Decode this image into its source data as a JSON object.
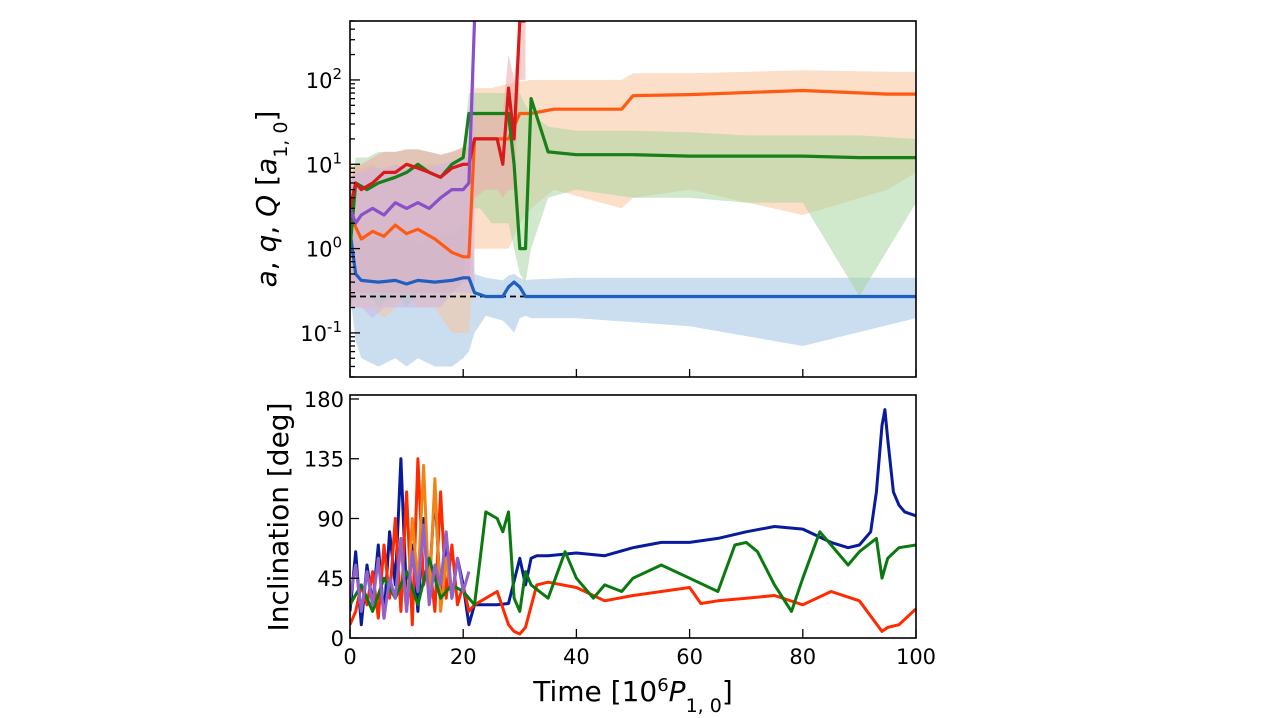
{
  "chart_data": [
    {
      "type": "line",
      "panel": "top",
      "yscale": "log",
      "ylabel": "a, q, Q [a_{1,0}]",
      "xlim": [
        0,
        100
      ],
      "ylim": [
        0.03,
        500
      ],
      "ytick_labels": [
        "10^{-1}",
        "10^{0}",
        "10^{1}",
        "10^{2}"
      ],
      "ytick_values": [
        0.1,
        1,
        10,
        100
      ],
      "reference_line": {
        "y": 0.27,
        "style": "dashed",
        "color": "#000000"
      },
      "series": [
        {
          "color": "#1f5fbf",
          "band_color": "#9ec2e2",
          "x": [
            0,
            1,
            2,
            5,
            8,
            10,
            12,
            15,
            18,
            20,
            21,
            22,
            24,
            27,
            28,
            29,
            30,
            31,
            32,
            40,
            60,
            80,
            100
          ],
          "y": [
            1.6,
            0.5,
            0.42,
            0.4,
            0.42,
            0.38,
            0.42,
            0.4,
            0.42,
            0.45,
            0.45,
            0.3,
            0.27,
            0.27,
            0.35,
            0.4,
            0.35,
            0.27,
            0.27,
            0.27,
            0.27,
            0.27,
            0.27
          ],
          "band_low": [
            0.3,
            0.08,
            0.05,
            0.04,
            0.05,
            0.04,
            0.05,
            0.04,
            0.04,
            0.05,
            0.06,
            0.1,
            0.16,
            0.14,
            0.12,
            0.1,
            0.15,
            0.16,
            0.15,
            0.15,
            0.12,
            0.07,
            0.15
          ],
          "band_high": [
            2,
            1.2,
            1.3,
            1.4,
            1.2,
            1.5,
            1.1,
            1.5,
            1.5,
            1.8,
            2.5,
            0.5,
            0.45,
            0.42,
            0.48,
            0.5,
            0.45,
            0.42,
            0.43,
            0.45,
            0.45,
            0.45,
            0.45
          ]
        },
        {
          "color": "#ff5a14",
          "band_color": "#f9c49d",
          "x": [
            0,
            2,
            4,
            6,
            8,
            10,
            12,
            15,
            18,
            20,
            21,
            22,
            25,
            28,
            30,
            32,
            36,
            48,
            50,
            60,
            80,
            95,
            100
          ],
          "y": [
            2.5,
            1.3,
            1.6,
            1.4,
            1.9,
            1.5,
            1.7,
            1.3,
            0.9,
            0.8,
            0.8,
            20,
            20,
            20,
            40,
            40,
            45,
            45,
            65,
            67,
            75,
            68,
            68
          ],
          "band_low": [
            0.2,
            0.2,
            0.2,
            0.15,
            0.2,
            0.3,
            0.2,
            0.2,
            0.1,
            0.1,
            0.1,
            1,
            1,
            1,
            2,
            3,
            5,
            3,
            4,
            5,
            2.5,
            5,
            8
          ],
          "band_high": [
            10,
            9,
            10,
            8,
            10,
            9,
            10,
            10,
            8,
            9,
            10,
            80,
            80,
            90,
            95,
            100,
            100,
            100,
            120,
            120,
            130,
            125,
            125
          ]
        },
        {
          "color": "#178017",
          "band_color": "#a9d6a0",
          "x": [
            0,
            1,
            3,
            5,
            8,
            10,
            12,
            14,
            16,
            18,
            20,
            21,
            22,
            23,
            25,
            28,
            29,
            30,
            31,
            32,
            35,
            40,
            50,
            60,
            70,
            80,
            90,
            100
          ],
          "y": [
            1,
            6,
            5,
            6,
            7,
            8,
            10,
            8,
            7,
            10,
            12,
            40,
            40,
            40,
            40,
            40,
            10,
            1,
            1,
            60,
            14,
            13,
            13,
            12.5,
            12.5,
            12.5,
            12,
            12
          ],
          "band_low": [
            0.2,
            0.3,
            0.3,
            0.2,
            0.3,
            0.2,
            0.3,
            0.3,
            0.3,
            0.3,
            0.4,
            3,
            3,
            3,
            2,
            2,
            1,
            0.5,
            0.4,
            1,
            4,
            5,
            4,
            4,
            3.5,
            3.5,
            0.27,
            3.5
          ],
          "band_high": [
            5,
            12,
            12,
            14,
            14,
            15,
            15,
            14,
            13,
            14,
            16,
            70,
            70,
            70,
            70,
            70,
            70,
            70,
            50,
            40,
            28,
            25,
            25,
            24,
            22,
            22,
            22,
            20
          ]
        },
        {
          "color": "#d91a1a",
          "band_color": "#f0a8a8",
          "x": [
            0,
            1,
            2,
            4,
            6,
            8,
            10,
            12,
            14,
            16,
            18,
            20,
            21,
            22,
            24,
            26,
            27,
            28,
            29,
            30,
            31
          ],
          "y": [
            3,
            6,
            5,
            6,
            8,
            8,
            10,
            9,
            8,
            7,
            9,
            10,
            10,
            20,
            20,
            20,
            10,
            80,
            20,
            500,
            500
          ],
          "band_low": [
            0.2,
            0.3,
            0.3,
            0.3,
            0.3,
            0.3,
            0.3,
            0.3,
            0.3,
            0.3,
            0.3,
            0.4,
            0.4,
            4,
            5,
            5,
            4,
            5,
            5,
            100,
            100
          ],
          "band_high": [
            6,
            10,
            10,
            12,
            14,
            14,
            15,
            15,
            14,
            13,
            14,
            16,
            16,
            40,
            40,
            40,
            40,
            200,
            100,
            500,
            500
          ]
        },
        {
          "color": "#8a4fc9",
          "band_color": "#cfb4e4",
          "x": [
            0,
            1,
            2,
            4,
            6,
            8,
            10,
            12,
            14,
            16,
            18,
            20,
            21,
            22
          ],
          "y": [
            3,
            2,
            2.5,
            3,
            2.5,
            3.5,
            3,
            3.5,
            3,
            4,
            5,
            5,
            6,
            500
          ],
          "band_low": [
            0.2,
            0.2,
            0.2,
            0.15,
            0.2,
            0.2,
            0.2,
            0.2,
            0.2,
            0.2,
            0.3,
            0.3,
            0.3,
            0.3
          ],
          "band_high": [
            6,
            8,
            8,
            9,
            9,
            10,
            9,
            10,
            9,
            10,
            11,
            12,
            12,
            500
          ]
        }
      ]
    },
    {
      "type": "line",
      "panel": "bottom",
      "xlabel": "Time [10^6 P_{1,0}]",
      "ylabel": "Inclination [deg]",
      "xlim": [
        0,
        100
      ],
      "ylim": [
        0,
        183
      ],
      "xtick_labels": [
        "0",
        "20",
        "40",
        "60",
        "80",
        "100"
      ],
      "xtick_values": [
        0,
        20,
        40,
        60,
        80,
        100
      ],
      "ytick_labels": [
        "0",
        "45",
        "90",
        "135",
        "180"
      ],
      "ytick_values": [
        0,
        45,
        90,
        135,
        180
      ],
      "series": [
        {
          "color": "#0a1a9c",
          "x": [
            0,
            1,
            2,
            3,
            4,
            5,
            6,
            7,
            8,
            9,
            10,
            11,
            12,
            13,
            14,
            15,
            16,
            17,
            18,
            19,
            20,
            21,
            22,
            24,
            26,
            28,
            30,
            31,
            32,
            33,
            35,
            40,
            45,
            50,
            55,
            60,
            65,
            70,
            75,
            80,
            85,
            88,
            90,
            92,
            93,
            94,
            94.5,
            95,
            96,
            97,
            98,
            100
          ],
          "y": [
            20,
            65,
            10,
            55,
            25,
            70,
            15,
            80,
            40,
            135,
            30,
            70,
            20,
            90,
            40,
            110,
            30,
            75,
            30,
            60,
            40,
            10,
            25,
            25,
            25,
            26,
            60,
            40,
            60,
            62,
            62,
            64,
            62,
            68,
            72,
            72,
            75,
            80,
            84,
            82,
            72,
            68,
            70,
            80,
            110,
            160,
            172,
            150,
            110,
            100,
            95,
            92
          ]
        },
        {
          "color": "#ff2a00",
          "x": [
            0,
            1,
            2,
            3,
            4,
            5,
            6,
            7,
            8,
            9,
            10,
            11,
            12,
            13,
            14,
            15,
            16,
            17,
            18,
            19,
            20,
            21,
            22,
            24,
            26,
            28,
            29,
            30,
            31,
            33,
            35,
            40,
            45,
            50,
            55,
            60,
            62,
            65,
            70,
            75,
            80,
            85,
            90,
            94,
            95,
            97,
            100
          ],
          "y": [
            10,
            20,
            40,
            25,
            50,
            15,
            70,
            30,
            90,
            20,
            110,
            10,
            135,
            40,
            60,
            20,
            110,
            30,
            70,
            25,
            40,
            20,
            25,
            30,
            35,
            10,
            5,
            3,
            8,
            40,
            42,
            38,
            28,
            32,
            35,
            38,
            26,
            28,
            30,
            32,
            25,
            35,
            28,
            5,
            8,
            10,
            22
          ]
        },
        {
          "color": "#f08515",
          "x": [
            8,
            9,
            10,
            11,
            12,
            13,
            14,
            15,
            16,
            17,
            18
          ],
          "y": [
            30,
            70,
            20,
            90,
            40,
            130,
            30,
            120,
            20,
            60,
            30
          ]
        },
        {
          "color": "#0a7a10",
          "x": [
            0,
            2,
            4,
            6,
            8,
            10,
            12,
            14,
            16,
            18,
            20,
            21,
            22,
            23,
            24,
            26,
            27,
            28,
            29,
            30,
            31,
            32,
            35,
            38,
            40,
            43,
            45,
            48,
            50,
            55,
            60,
            65,
            68,
            70,
            72,
            75,
            78,
            80,
            83,
            85,
            88,
            90,
            93,
            94,
            95,
            97,
            100
          ],
          "y": [
            25,
            40,
            20,
            45,
            30,
            50,
            25,
            60,
            30,
            40,
            35,
            30,
            25,
            60,
            95,
            90,
            80,
            95,
            30,
            20,
            50,
            40,
            30,
            65,
            45,
            30,
            40,
            35,
            45,
            55,
            45,
            35,
            70,
            72,
            65,
            40,
            20,
            45,
            80,
            70,
            55,
            65,
            75,
            45,
            60,
            68,
            70
          ]
        },
        {
          "color": "#9161cc",
          "x": [
            0,
            1,
            2,
            3,
            4,
            5,
            6,
            7,
            8,
            9,
            10,
            11,
            12,
            13,
            14,
            15,
            16,
            17,
            18,
            19,
            20,
            21
          ],
          "y": [
            30,
            55,
            20,
            50,
            25,
            60,
            15,
            45,
            30,
            75,
            20,
            65,
            35,
            85,
            25,
            55,
            40,
            80,
            30,
            60,
            35,
            50
          ]
        }
      ]
    }
  ]
}
